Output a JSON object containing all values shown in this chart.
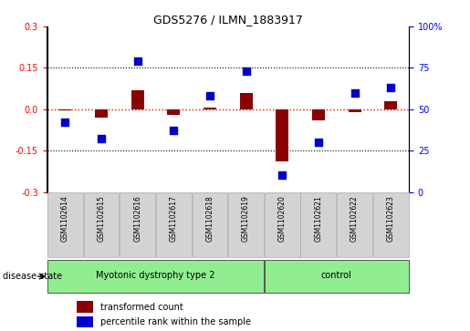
{
  "title": "GDS5276 / ILMN_1883917",
  "samples": [
    "GSM1102614",
    "GSM1102615",
    "GSM1102616",
    "GSM1102617",
    "GSM1102618",
    "GSM1102619",
    "GSM1102620",
    "GSM1102621",
    "GSM1102622",
    "GSM1102623"
  ],
  "transformed_count": [
    -0.005,
    -0.03,
    0.07,
    -0.02,
    0.005,
    0.06,
    -0.19,
    -0.04,
    -0.01,
    0.03
  ],
  "percentile_rank": [
    42,
    32,
    79,
    37,
    58,
    73,
    10,
    30,
    60,
    63
  ],
  "groups": [
    {
      "label": "Myotonic dystrophy type 2",
      "start": 0,
      "end": 6,
      "color": "#90EE90"
    },
    {
      "label": "control",
      "start": 6,
      "end": 10,
      "color": "#90EE90"
    }
  ],
  "ylim_left": [
    -0.3,
    0.3
  ],
  "ylim_right": [
    0,
    100
  ],
  "yticks_left": [
    -0.3,
    -0.15,
    0.0,
    0.15,
    0.3
  ],
  "yticks_right": [
    0,
    25,
    50,
    75,
    100
  ],
  "bar_color": "#8B0000",
  "dot_color": "#0000CD",
  "bar_width": 0.35,
  "dot_size": 30,
  "legend_labels": [
    "transformed count",
    "percentile rank within the sample"
  ],
  "legend_colors": [
    "#8B0000",
    "#0000CD"
  ],
  "disease_state_label": "disease state",
  "cell_color": "#d3d3d3",
  "cell_border": "#aaaaaa",
  "plot_bg_color": "#ffffff"
}
